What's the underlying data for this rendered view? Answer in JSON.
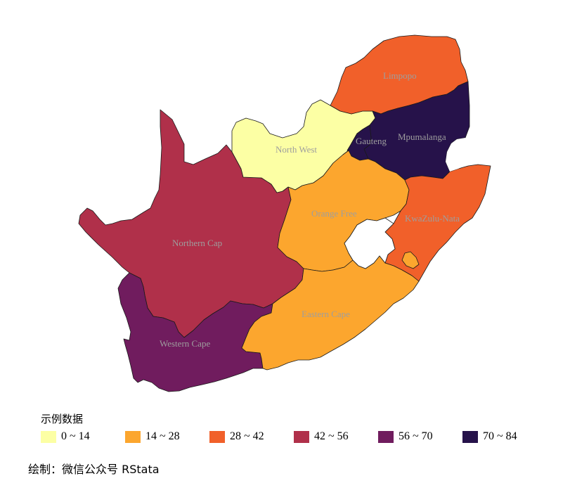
{
  "legend": {
    "title": "示例数据",
    "items": [
      {
        "label": "0 ~ 14",
        "color": "#FCFFA4"
      },
      {
        "label": "14 ~ 28",
        "color": "#FCA62E"
      },
      {
        "label": "28 ~ 42",
        "color": "#F1602A"
      },
      {
        "label": "42 ~ 56",
        "color": "#B0304A"
      },
      {
        "label": "56 ~ 70",
        "color": "#701C5E"
      },
      {
        "label": "70 ~ 84",
        "color": "#26124A"
      }
    ]
  },
  "provinces": {
    "limpopo": {
      "label": "Limpopo",
      "color": "#F1602A",
      "category": "28 ~ 42"
    },
    "mpumalanga": {
      "label": "Mpumalanga",
      "color": "#26124A",
      "category": "70 ~ 84"
    },
    "gauteng": {
      "label": "Gauteng",
      "color": "#26124A",
      "category": "70 ~ 84"
    },
    "north_west": {
      "label": "North West",
      "color": "#FCFFA4",
      "category": "0 ~ 14"
    },
    "northern_cape": {
      "label": "Northern Cap",
      "color": "#B0304A",
      "category": "42 ~ 56"
    },
    "free_state": {
      "label": "Orange Free",
      "color": "#FCA62E",
      "category": "14 ~ 28"
    },
    "kwazulu_natal": {
      "label": "KwaZulu-Nata",
      "color": "#F1602A",
      "category": "28 ~ 42"
    },
    "eastern_cape": {
      "label": "Eastern Cape",
      "color": "#FCA62E",
      "category": "14 ~ 28"
    },
    "western_cape": {
      "label": "Western Cape",
      "color": "#701C5E",
      "category": "56 ~ 70"
    }
  },
  "credit": "绘制：微信公众号 RStata"
}
